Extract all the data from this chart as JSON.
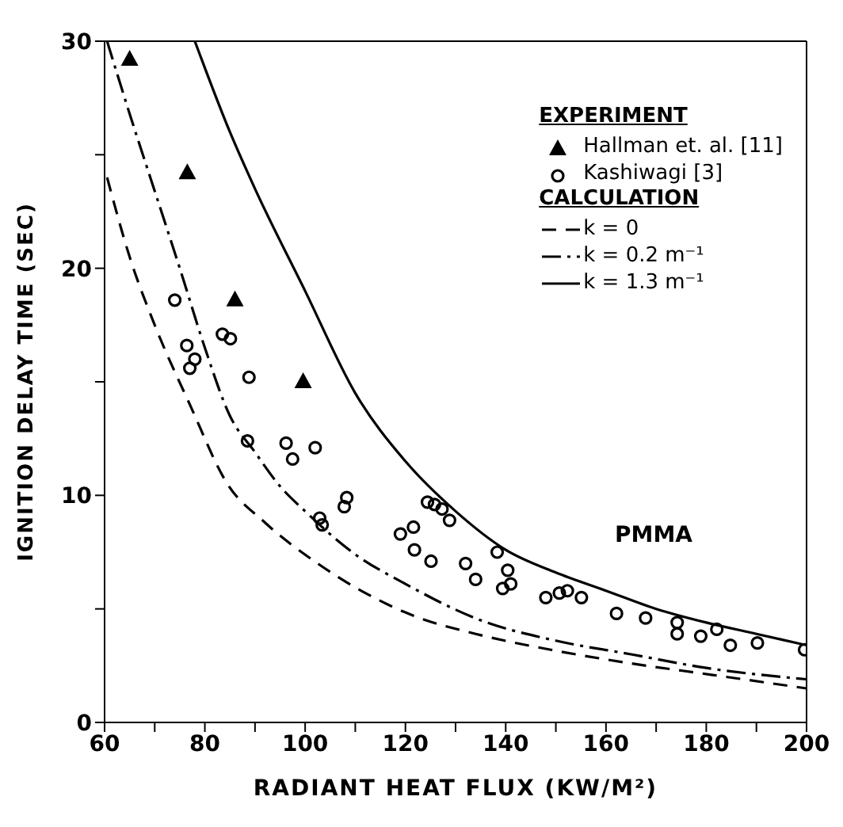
{
  "chart_data": {
    "type": "scatter",
    "xlabel": "RADIANT HEAT FLUX (KW/M²)",
    "ylabel": "IGNITION DELAY TIME (SEC)",
    "xlim": [
      60,
      200
    ],
    "xticks": [
      60,
      {
        "value": 70,
        "label": null
      },
      80,
      {
        "value": 90,
        "label": null
      },
      100,
      {
        "value": 110,
        "label": null
      },
      120,
      {
        "value": 130,
        "label": null
      },
      140,
      {
        "value": 150,
        "label": null
      },
      160,
      {
        "value": 170,
        "label": null
      },
      180,
      {
        "value": 190,
        "label": null
      },
      200
    ],
    "ylim": [
      0,
      30
    ],
    "yticks": [
      0,
      {
        "value": 5,
        "label": null
      },
      10,
      {
        "value": 15,
        "label": null
      },
      20,
      {
        "value": 25,
        "label": null
      },
      30
    ],
    "legend": "top right",
    "annotations": [
      "EXPERIMENT",
      "CALCULATION",
      "PMMA"
    ],
    "series": [
      {
        "name": "Hallman et. al. [11]",
        "marker": "triangle",
        "color": "#000000",
        "x": [
          65,
          76.5,
          86,
          99.6
        ],
        "values": [
          29.2,
          24.2,
          18.6,
          15.0
        ]
      },
      {
        "name": "Kashiwagi [3]",
        "marker": "circle",
        "color": "#000000",
        "x": [
          74,
          83.5,
          85.1,
          76.4,
          78,
          77,
          88.8,
          88.5,
          96.2,
          97.5,
          102,
          108.3,
          107.8,
          102.9,
          103.4,
          124.4,
          125.8,
          127.3,
          128.8,
          119,
          121.6,
          121.8,
          125.1,
          132,
          134,
          138.3,
          140.4,
          139.4,
          141,
          148,
          150.7,
          152.3,
          155.1,
          162.1,
          167.9,
          174.2,
          174.2,
          178.9,
          182.1,
          184.8,
          190.2,
          199.6
        ],
        "values": [
          18.6,
          17.1,
          16.9,
          16.6,
          16.0,
          15.6,
          15.2,
          12.4,
          12.3,
          11.6,
          12.1,
          9.9,
          9.5,
          9.0,
          8.7,
          9.7,
          9.6,
          9.4,
          8.9,
          8.3,
          8.6,
          7.6,
          7.1,
          7.0,
          6.3,
          7.5,
          6.7,
          5.9,
          6.1,
          5.5,
          5.7,
          5.8,
          5.5,
          4.8,
          4.6,
          4.4,
          3.9,
          3.8,
          4.1,
          3.4,
          3.5,
          3.2
        ]
      },
      {
        "name": "k = 0",
        "type": "line",
        "line_style": "dashed",
        "marker": "none",
        "color": "#000000",
        "x": [
          60.5,
          65,
          70,
          77,
          84.5,
          92,
          102.5,
          112,
          121.6,
          134,
          149,
          165,
          181,
          200
        ],
        "values": [
          24,
          20.5,
          17.5,
          14,
          10.5,
          8.8,
          7,
          5.7,
          4.7,
          3.9,
          3.2,
          2.6,
          2.1,
          1.5
        ]
      },
      {
        "name": "k = 0.2 m⁻¹",
        "type": "line",
        "line_style": "dotted",
        "marker": "none",
        "color": "#000000",
        "x": [
          60.5,
          65,
          70,
          75,
          80,
          85,
          90,
          95,
          100,
          110,
          120,
          135,
          150,
          165,
          180,
          200
        ],
        "values": [
          30,
          26.8,
          23.4,
          20,
          16.5,
          13.5,
          11.9,
          10.4,
          9.3,
          7.4,
          6.1,
          4.5,
          3.6,
          3.0,
          2.4,
          1.9
        ]
      },
      {
        "name": "k = 1.3 m⁻¹",
        "type": "line",
        "line_style": "solid",
        "marker": "none",
        "color": "#000000",
        "x": [
          78,
          85,
          90,
          100,
          110,
          120,
          130,
          140,
          150,
          160,
          170,
          180,
          190,
          200
        ],
        "values": [
          30,
          26,
          23.5,
          19,
          14.5,
          11.5,
          9.3,
          7.6,
          6.6,
          5.8,
          5.0,
          4.4,
          3.9,
          3.4
        ]
      }
    ]
  }
}
